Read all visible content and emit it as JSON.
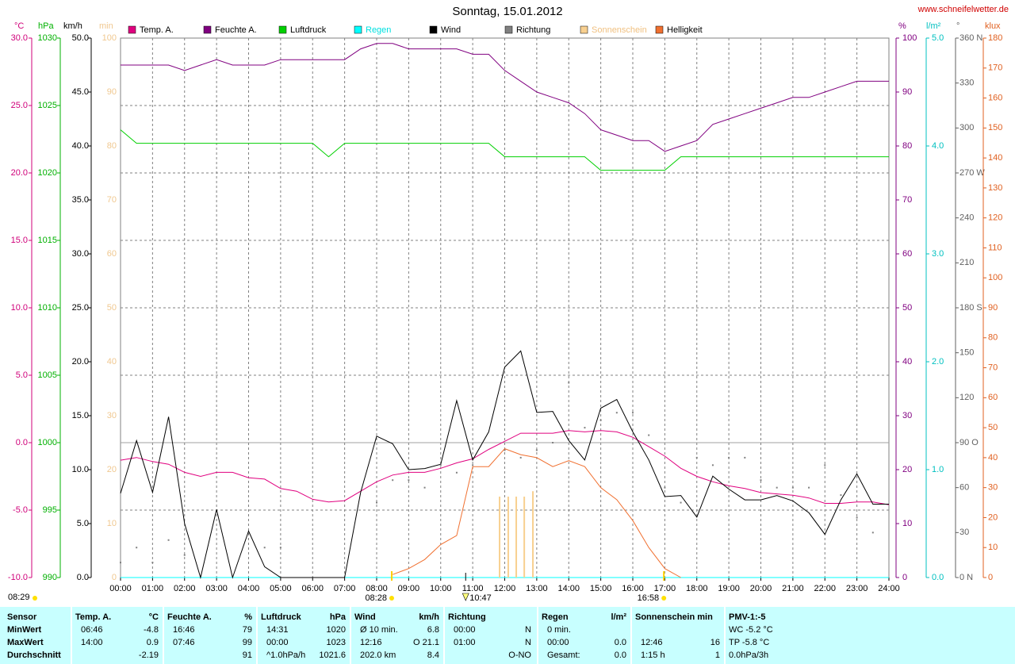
{
  "chart_data": {
    "type": "line",
    "title": "Sonntag, 15.01.2012",
    "source": "www.schneifelwetter.de",
    "xlim": [
      0,
      24
    ],
    "xticks": [
      {
        "value": 0,
        "label": "00:00"
      },
      {
        "value": 1,
        "label": "01:00"
      },
      {
        "value": 2,
        "label": "02:00"
      },
      {
        "value": 3,
        "label": "03:00"
      },
      {
        "value": 4,
        "label": "04:00"
      },
      {
        "value": 5,
        "label": "05:00"
      },
      {
        "value": 6,
        "label": "06:00"
      },
      {
        "value": 7,
        "label": "07:00"
      },
      {
        "value": 8,
        "label": "08:00"
      },
      {
        "value": 9,
        "label": "09:00"
      },
      {
        "value": 10,
        "label": "10:00"
      },
      {
        "value": 11,
        "label": "11:00"
      },
      {
        "value": 12,
        "label": "12:00"
      },
      {
        "value": 13,
        "label": "13:00"
      },
      {
        "value": 14,
        "label": "14:00"
      },
      {
        "value": 15,
        "label": "15:00"
      },
      {
        "value": 16,
        "label": "16:00"
      },
      {
        "value": 17,
        "label": "17:00"
      },
      {
        "value": 18,
        "label": "18:00"
      },
      {
        "value": 19,
        "label": "19:00"
      },
      {
        "value": 20,
        "label": "20:00"
      },
      {
        "value": 21,
        "label": "21:00"
      },
      {
        "value": 22,
        "label": "22:00"
      },
      {
        "value": 23,
        "label": "23:00"
      },
      {
        "value": 24,
        "label": "24:00"
      }
    ],
    "grid": true,
    "axes": [
      {
        "unit": "°C",
        "color": "#d0007a",
        "lim": [
          -10,
          30
        ],
        "ticks": [
          {
            "value": -10,
            "label": "-10.0"
          },
          {
            "value": -5,
            "label": "-5.0"
          },
          {
            "value": 0,
            "label": "0.0"
          },
          {
            "value": 5,
            "label": "5.0"
          },
          {
            "value": 10,
            "label": "10.0"
          },
          {
            "value": 15,
            "label": "15.0"
          },
          {
            "value": 20,
            "label": "20.0"
          },
          {
            "value": 25,
            "label": "25.0"
          },
          {
            "value": 30,
            "label": "30.0"
          }
        ]
      },
      {
        "unit": "hPa",
        "color": "#00b000",
        "lim": [
          990,
          1030
        ],
        "ticks": [
          990,
          995,
          1000,
          1005,
          1010,
          1015,
          1020,
          1025,
          1030
        ]
      },
      {
        "unit": "km/h",
        "color": "#000000",
        "lim": [
          0,
          50
        ],
        "ticks": [
          {
            "value": 0,
            "label": "0.0"
          },
          {
            "value": 5,
            "label": "5.0"
          },
          {
            "value": 10,
            "label": "10.0"
          },
          {
            "value": 15,
            "label": "15.0"
          },
          {
            "value": 20,
            "label": "20.0"
          },
          {
            "value": 25,
            "label": "25.0"
          },
          {
            "value": 30,
            "label": "30.0"
          },
          {
            "value": 35,
            "label": "35.0"
          },
          {
            "value": 40,
            "label": "40.0"
          },
          {
            "value": 45,
            "label": "45.0"
          },
          {
            "value": 50,
            "label": "50.0"
          }
        ]
      },
      {
        "unit": "min",
        "color": "#f0c890",
        "lim": [
          0,
          100
        ],
        "ticks": [
          0,
          10,
          20,
          30,
          40,
          50,
          60,
          70,
          80,
          90,
          100
        ]
      },
      {
        "unit": "%",
        "color": "#800080",
        "lim": [
          0,
          100
        ],
        "ticks": [
          0,
          10,
          20,
          30,
          40,
          50,
          60,
          70,
          80,
          90,
          100
        ]
      },
      {
        "unit": "l/m²",
        "color": "#00c0c0",
        "lim": [
          0,
          5
        ],
        "ticks": [
          {
            "value": 0,
            "label": "0.0"
          },
          {
            "value": 1,
            "label": "1.0"
          },
          {
            "value": 2,
            "label": "2.0"
          },
          {
            "value": 3,
            "label": "3.0"
          },
          {
            "value": 4,
            "label": "4.0"
          },
          {
            "value": 5,
            "label": "5.0"
          }
        ]
      },
      {
        "unit": "°",
        "color": "#606060",
        "lim": [
          0,
          360
        ],
        "ticks": [
          {
            "value": 0,
            "label": "0 N"
          },
          30,
          60,
          {
            "value": 90,
            "label": "90 O"
          },
          120,
          150,
          {
            "value": 180,
            "label": "180 S"
          },
          210,
          240,
          {
            "value": 270,
            "label": "270 W"
          },
          300,
          330,
          {
            "value": 360,
            "label": "360 N"
          }
        ]
      },
      {
        "unit": "klux",
        "color": "#e06020",
        "lim": [
          0,
          180
        ],
        "ticks": [
          0,
          10,
          20,
          30,
          40,
          50,
          60,
          70,
          80,
          90,
          100,
          110,
          120,
          130,
          140,
          150,
          160,
          170,
          180
        ]
      }
    ],
    "x": [
      0,
      0.5,
      1,
      1.5,
      2,
      2.5,
      3,
      3.5,
      4,
      4.5,
      5,
      5.5,
      6,
      6.5,
      7,
      7.5,
      8,
      8.5,
      9,
      9.5,
      10,
      10.5,
      11,
      11.5,
      12,
      12.5,
      13,
      13.5,
      14,
      14.5,
      15,
      15.5,
      16,
      16.5,
      17,
      17.5,
      18,
      18.5,
      19,
      19.5,
      20,
      20.5,
      21,
      21.5,
      22,
      22.5,
      23,
      23.5,
      24
    ],
    "series": [
      {
        "name": "Temp. A.",
        "color": "#e0007f",
        "axis": "°C",
        "type": "line",
        "values": [
          -1.3,
          -1.1,
          -1.4,
          -1.6,
          -2.2,
          -2.5,
          -2.2,
          -2.2,
          -2.6,
          -2.7,
          -3.4,
          -3.6,
          -4.2,
          -4.4,
          -4.3,
          -3.6,
          -2.9,
          -2.4,
          -2.2,
          -2.2,
          -1.9,
          -1.5,
          -1.2,
          -0.5,
          0.1,
          0.7,
          0.7,
          0.7,
          0.9,
          0.8,
          0.9,
          0.8,
          0.4,
          -0.3,
          -1.0,
          -1.9,
          -2.5,
          -2.9,
          -3.2,
          -3.4,
          -3.7,
          -3.8,
          -3.9,
          -4.1,
          -4.5,
          -4.5,
          -4.4,
          -4.4,
          -4.6
        ]
      },
      {
        "name": "Feuchte A.",
        "color": "#800080",
        "axis": "%",
        "type": "line",
        "values": [
          95,
          95,
          95,
          95,
          94,
          95,
          96,
          95,
          95,
          95,
          96,
          96,
          96,
          96,
          96,
          98,
          99,
          99,
          98,
          98,
          98,
          98,
          97,
          97,
          94,
          92,
          90,
          89,
          88,
          86,
          83,
          82,
          81,
          81,
          79,
          80,
          81,
          84,
          85,
          86,
          87,
          88,
          89,
          89,
          90,
          91,
          92,
          92,
          92
        ]
      },
      {
        "name": "Luftdruck",
        "color": "#00d000",
        "axis": "hPa",
        "type": "line",
        "values": [
          1023.2,
          1022.2,
          1022.2,
          1022.2,
          1022.2,
          1022.2,
          1022.2,
          1022.2,
          1022.2,
          1022.2,
          1022.2,
          1022.2,
          1022.2,
          1021.2,
          1022.2,
          1022.2,
          1022.2,
          1022.2,
          1022.2,
          1022.2,
          1022.2,
          1022.2,
          1022.2,
          1022.2,
          1021.2,
          1021.2,
          1021.2,
          1021.2,
          1021.2,
          1021.2,
          1020.2,
          1020.2,
          1020.2,
          1020.2,
          1020.2,
          1021.2,
          1021.2,
          1021.2,
          1021.2,
          1021.2,
          1021.2,
          1021.2,
          1021.2,
          1021.2,
          1021.2,
          1021.2,
          1021.2,
          1021.2,
          1021.2
        ]
      },
      {
        "name": "Regen",
        "color": "#00ffff",
        "label_color": "#00e0e0",
        "axis": "l/m²",
        "type": "line",
        "values": [
          0,
          0,
          0,
          0,
          0,
          0,
          0,
          0,
          0,
          0,
          0,
          0,
          0,
          0,
          0,
          0,
          0,
          0,
          0,
          0,
          0,
          0,
          0,
          0,
          0,
          0,
          0,
          0,
          0,
          0,
          0,
          0,
          0,
          0,
          0,
          0,
          0,
          0,
          0,
          0,
          0,
          0,
          0,
          0,
          0,
          0,
          0,
          0,
          0
        ]
      },
      {
        "name": "Wind",
        "color": "#000000",
        "axis": "km/h",
        "type": "line",
        "values": [
          7.8,
          12.7,
          7.9,
          14.9,
          5.0,
          0,
          6.3,
          0,
          4.3,
          1.0,
          0,
          0,
          0,
          0,
          0,
          7.9,
          13.1,
          12.4,
          10.0,
          10.1,
          10.5,
          16.4,
          10.9,
          13.5,
          19.5,
          21.0,
          15.3,
          15.4,
          12.7,
          10.9,
          15.7,
          16.5,
          13.5,
          10.9,
          7.5,
          7.6,
          5.6,
          9.4,
          8.2,
          7.2,
          7.2,
          7.6,
          7.1,
          6.0,
          4.0,
          7.2,
          9.6,
          6.8,
          6.8
        ]
      },
      {
        "name": "Richtung",
        "color": "#808080",
        "axis": "°",
        "type": "scatter",
        "values": [
          10,
          20,
          10,
          25,
          15,
          null,
          null,
          null,
          null,
          20,
          20,
          null,
          null,
          null,
          null,
          null,
          50,
          65,
          65,
          60,
          75,
          70,
          75,
          null,
          85,
          80,
          85,
          90,
          130,
          100,
          105,
          110,
          110,
          95,
          60,
          50,
          80,
          75,
          80,
          80,
          65,
          60,
          60,
          60,
          75,
          55,
          40,
          30,
          null
        ]
      },
      {
        "name": "Sonnenschein",
        "color": "#f8d090",
        "label_color": "#f0c080",
        "axis": "min",
        "type": "bar",
        "x": [
          11.84,
          12.11,
          12.36,
          12.61,
          12.88
        ],
        "values": [
          15,
          15,
          15,
          15,
          16
        ]
      },
      {
        "name": "Helligkeit",
        "color": "#f07030",
        "axis": "klux",
        "type": "line",
        "values": [
          null,
          null,
          null,
          null,
          null,
          null,
          null,
          null,
          null,
          null,
          null,
          null,
          null,
          null,
          null,
          null,
          null,
          1,
          3,
          6,
          11,
          14,
          37,
          37,
          43,
          41,
          40,
          37,
          39,
          37,
          30,
          26,
          19,
          10,
          3,
          0,
          null,
          null,
          null,
          null,
          null,
          null,
          null,
          null,
          null,
          null,
          null,
          null,
          null
        ]
      }
    ],
    "annotations": [
      {
        "label": "08:29"
      },
      {
        "label": "08:28",
        "x": 8.47
      },
      {
        "label": "10:47",
        "x": 10.78
      },
      {
        "label": "16:58",
        "x": 16.97
      }
    ]
  },
  "table": {
    "groups": [
      {
        "header": [
          "Sensor"
        ],
        "rows": [
          [
            "MinWert"
          ],
          [
            "MaxWert"
          ],
          [
            "Durchschnitt"
          ]
        ]
      },
      {
        "header": [
          "Temp. A.",
          "°C"
        ],
        "rows": [
          [
            "06:46",
            "-4.8"
          ],
          [
            "14:00",
            "0.9"
          ],
          [
            null,
            "-2.19"
          ]
        ]
      },
      {
        "header": [
          "Feuchte A.",
          "%"
        ],
        "rows": [
          [
            "16:46",
            "79"
          ],
          [
            "07:46",
            "99"
          ],
          [
            null,
            "91"
          ]
        ]
      },
      {
        "header": [
          "Luftdruck",
          "hPa"
        ],
        "rows": [
          [
            "14:31",
            "1020"
          ],
          [
            "00:00",
            "1023"
          ],
          [
            "^1.0hPa/h",
            "1021.6"
          ]
        ]
      },
      {
        "header": [
          "Wind",
          "km/h"
        ],
        "rows": [
          [
            "Ø 10 min.",
            "6.8"
          ],
          [
            "12:16",
            "O 21.1"
          ],
          [
            "202.0 km",
            "8.4"
          ]
        ]
      },
      {
        "header": [
          "Richtung"
        ],
        "rows": [
          [
            "00:00",
            "N"
          ],
          [
            "01:00",
            "N"
          ],
          [
            null,
            "O-NO"
          ]
        ]
      },
      {
        "header": [
          "Regen",
          "l/m²"
        ],
        "rows": [
          [
            "0 min.",
            null
          ],
          [
            "00:00",
            "0.0"
          ],
          [
            "Gesamt:",
            "0.0"
          ]
        ]
      },
      {
        "header": [
          "Sonnenschein min"
        ],
        "rows": [
          [
            null,
            null
          ],
          [
            "12:46",
            "16"
          ],
          [
            "1:15 h",
            "1"
          ]
        ]
      },
      {
        "header": [
          "PMV-1:-5"
        ],
        "rows": [
          [
            "WC -5.2 °C"
          ],
          [
            "TP -5.8 °C"
          ],
          [
            "0.0hPa/3h"
          ]
        ]
      }
    ]
  }
}
